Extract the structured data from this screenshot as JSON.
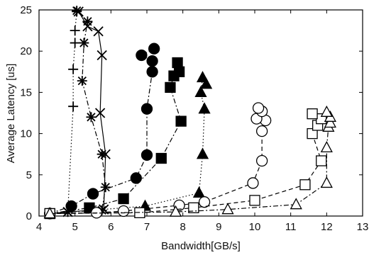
{
  "chart_data": {
    "type": "line",
    "title": "",
    "xlabel": "Bandwidth[GB/s]",
    "ylabel": "Average Latency [us]",
    "xlim": [
      4,
      13
    ],
    "ylim": [
      0,
      25
    ],
    "xticks": [
      4,
      5,
      6,
      7,
      8,
      9,
      10,
      11,
      12,
      13
    ],
    "yticks": [
      0,
      5,
      10,
      15,
      20,
      25
    ],
    "grid": false,
    "legend": "none",
    "series": [
      {
        "marker": "plus",
        "line": "dotted",
        "filled": false,
        "points": [
          [
            4.3,
            0.3
          ],
          [
            4.8,
            0.5
          ],
          [
            4.95,
            13.3
          ],
          [
            4.95,
            17.8
          ],
          [
            5.0,
            21.0
          ],
          [
            5.0,
            22.5
          ],
          [
            5.05,
            24.8
          ]
        ]
      },
      {
        "marker": "star",
        "line": "dashdot",
        "filled": false,
        "points": [
          [
            4.3,
            0.3
          ],
          [
            4.8,
            0.5
          ],
          [
            5.75,
            0.7
          ],
          [
            5.85,
            3.5
          ],
          [
            5.75,
            7.5
          ],
          [
            5.45,
            12.0
          ],
          [
            5.2,
            16.4
          ],
          [
            5.25,
            21.0
          ],
          [
            5.35,
            23.6
          ],
          [
            5.05,
            24.9
          ]
        ]
      },
      {
        "marker": "x",
        "line": "solid",
        "filled": false,
        "points": [
          [
            4.3,
            0.3
          ],
          [
            4.8,
            0.5
          ],
          [
            5.8,
            0.8
          ],
          [
            5.85,
            7.5
          ],
          [
            5.7,
            12.5
          ],
          [
            5.75,
            19.5
          ],
          [
            5.65,
            22.4
          ],
          [
            5.35,
            23.0
          ],
          [
            5.1,
            24.8
          ]
        ]
      },
      {
        "marker": "circle",
        "line": "dashdot",
        "filled": true,
        "points": [
          [
            4.3,
            0.3
          ],
          [
            4.9,
            1.2
          ],
          [
            5.5,
            2.7
          ],
          [
            6.7,
            4.6
          ],
          [
            7.0,
            7.4
          ],
          [
            7.0,
            13.0
          ],
          [
            7.15,
            17.5
          ],
          [
            7.15,
            18.8
          ],
          [
            6.85,
            19.5
          ],
          [
            7.2,
            20.3
          ]
        ]
      },
      {
        "marker": "square",
        "line": "dashdot",
        "filled": true,
        "points": [
          [
            4.3,
            0.3
          ],
          [
            5.4,
            1.0
          ],
          [
            6.35,
            2.1
          ],
          [
            7.4,
            7.0
          ],
          [
            7.95,
            11.5
          ],
          [
            7.65,
            15.6
          ],
          [
            7.75,
            17.0
          ],
          [
            7.9,
            17.5
          ],
          [
            7.85,
            18.6
          ]
        ]
      },
      {
        "marker": "triangle",
        "line": "dotted",
        "filled": true,
        "points": [
          [
            4.3,
            0.3
          ],
          [
            6.95,
            1.2
          ],
          [
            8.45,
            2.8
          ],
          [
            8.55,
            7.5
          ],
          [
            8.6,
            13.0
          ],
          [
            8.5,
            15.0
          ],
          [
            8.55,
            16.8
          ],
          [
            8.65,
            16.0
          ]
        ]
      },
      {
        "marker": "circle",
        "line": "dashed",
        "filled": false,
        "points": [
          [
            4.3,
            0.3
          ],
          [
            5.6,
            0.4
          ],
          [
            6.35,
            0.6
          ],
          [
            7.9,
            1.3
          ],
          [
            8.6,
            1.7
          ],
          [
            9.95,
            4.0
          ],
          [
            10.2,
            6.7
          ],
          [
            10.2,
            10.3
          ],
          [
            10.3,
            11.6
          ],
          [
            10.05,
            11.8
          ],
          [
            10.2,
            12.7
          ],
          [
            10.1,
            13.1
          ]
        ]
      },
      {
        "marker": "square",
        "line": "dashed",
        "filled": false,
        "points": [
          [
            4.3,
            0.3
          ],
          [
            6.8,
            0.4
          ],
          [
            8.3,
            1.0
          ],
          [
            10.0,
            1.9
          ],
          [
            11.4,
            3.8
          ],
          [
            11.85,
            6.7
          ],
          [
            11.6,
            10.0
          ],
          [
            11.75,
            11.0
          ],
          [
            11.85,
            11.8
          ],
          [
            11.6,
            12.4
          ]
        ]
      },
      {
        "marker": "triangle",
        "line": "dashdot",
        "filled": false,
        "points": [
          [
            4.3,
            0.3
          ],
          [
            7.8,
            0.5
          ],
          [
            9.25,
            0.8
          ],
          [
            11.15,
            1.4
          ],
          [
            12.0,
            4.0
          ],
          [
            12.0,
            8.3
          ],
          [
            12.05,
            10.8
          ],
          [
            12.1,
            11.3
          ],
          [
            12.1,
            12.0
          ],
          [
            12.0,
            12.6
          ]
        ]
      }
    ]
  }
}
